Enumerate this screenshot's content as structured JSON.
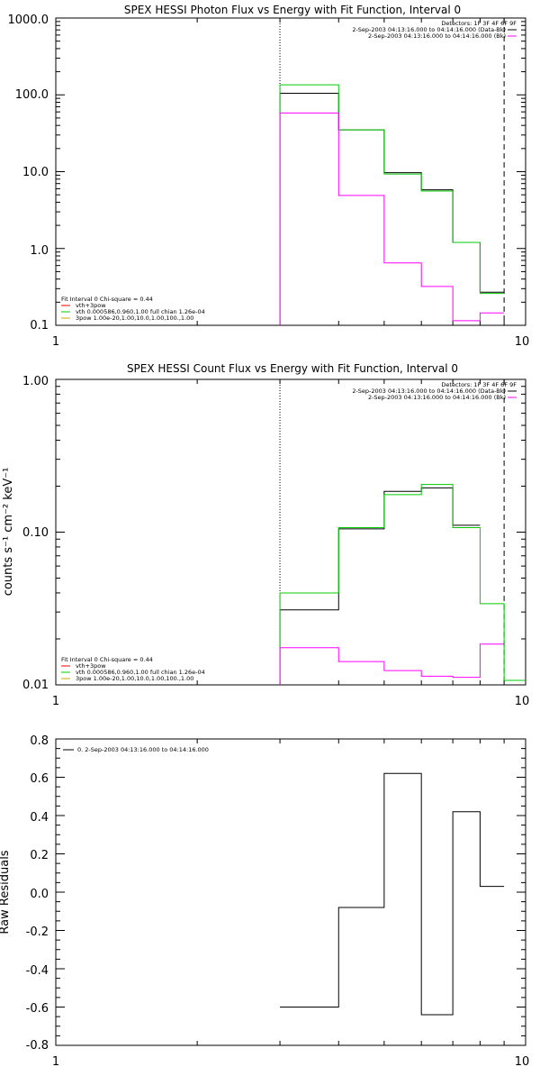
{
  "chart_data": [
    {
      "type": "line",
      "title": "SPEX HESSI Photon Flux vs Energy with Fit Function, Interval 0",
      "xscale": "log",
      "yscale": "log",
      "xlim": [
        1,
        10
      ],
      "ylim": [
        0.1,
        1000
      ],
      "xticks": [
        "1",
        "10"
      ],
      "yticks": [
        "0.1",
        "1.0",
        "10.0",
        "100.0",
        "1000.0"
      ],
      "ytick_values": [
        0.1,
        1,
        10,
        100,
        1000
      ],
      "energy_edges": [
        3,
        4,
        5,
        6,
        7,
        8,
        9
      ],
      "vlines": [
        {
          "x": 3,
          "style": "dotted"
        },
        {
          "x": 9,
          "style": "dashed"
        }
      ],
      "legend_top": {
        "placement": "top-right",
        "header": "Detectors: 1F 3F 4F 6F 9F",
        "entries": [
          {
            "label": "2-Sep-2003 04:13:16.000 to 04:14:16.000 (Data-Bk)",
            "color": "#000000"
          },
          {
            "label": "2-Sep-2003 04:13:16.000 to 04:14:16.000 (Bk)",
            "color": "#ff00ff"
          }
        ]
      },
      "legend_bottom": {
        "placement": "bottom-left",
        "header": "Fit Interval 0   Chi-square = 0.44",
        "entries": [
          {
            "label": "vth+3pow",
            "color": "#ff0000"
          },
          {
            "label": "vth 0.000586,0.960,1.00  full chian 1.26e-04",
            "color": "#00cc00"
          },
          {
            "label": "3pow 1.00e-20,1.00,10.0,1.00,100.,1.00",
            "color": "#ccaa00"
          }
        ]
      },
      "series": [
        {
          "color": "#000000",
          "values": [
            105,
            35,
            9.7,
            5.8,
            1.2,
            0.27
          ]
        },
        {
          "color": "#00cc00",
          "values": [
            135,
            35,
            9.3,
            5.6,
            1.2,
            0.26
          ]
        },
        {
          "color": "#ff00ff",
          "values": [
            58,
            4.9,
            0.65,
            0.32,
            0.115,
            0.145
          ]
        }
      ]
    },
    {
      "type": "line",
      "title": "SPEX HESSI Count Flux vs Energy with Fit Function, Interval 0",
      "ylabel": "counts s⁻¹ cm⁻² keV⁻¹",
      "xscale": "log",
      "yscale": "log",
      "xlim": [
        1,
        10
      ],
      "ylim": [
        0.01,
        1
      ],
      "xticks": [
        "1",
        "10"
      ],
      "yticks": [
        "0.01",
        "0.10",
        "1.00"
      ],
      "ytick_values": [
        0.01,
        0.1,
        1
      ],
      "energy_edges": [
        3,
        4,
        5,
        6,
        7,
        8,
        9,
        10
      ],
      "vlines": [
        {
          "x": 3,
          "style": "dotted"
        },
        {
          "x": 9,
          "style": "dashed"
        }
      ],
      "legend_top": {
        "placement": "top-right",
        "header": "Detectors: 1F 3F 4F 6F 9F",
        "entries": [
          {
            "label": "2-Sep-2003 04:13:16.000 to 04:14:16.000 (Data-Bk)",
            "color": "#000000"
          },
          {
            "label": "2-Sep-2003 04:13:16.000 to 04:14:16.000 (Bk)",
            "color": "#ff00ff"
          }
        ]
      },
      "legend_bottom": {
        "placement": "bottom-left",
        "header": "Fit Interval 0   Chi-square = 0.44",
        "entries": [
          {
            "label": "vth+3pow",
            "color": "#ff0000"
          },
          {
            "label": "vth 0.000586,0.960,1.00  full chian 1.26e-04",
            "color": "#00cc00"
          },
          {
            "label": "3pow 1.00e-20,1.00,10.0,1.00,100.,1.00",
            "color": "#ccaa00"
          }
        ]
      },
      "series": [
        {
          "color": "#000000",
          "values": [
            0.031,
            0.105,
            0.185,
            0.195,
            0.111,
            null,
            null
          ]
        },
        {
          "color": "#00cc00",
          "values": [
            0.04,
            0.107,
            0.176,
            0.205,
            0.107,
            0.034,
            0.0107
          ]
        },
        {
          "color": "#ff00ff",
          "values": [
            0.0175,
            0.0142,
            0.0124,
            0.0114,
            0.0112,
            0.0185,
            null
          ]
        }
      ]
    },
    {
      "type": "line",
      "title": "",
      "ylabel": "Raw Residuals",
      "xscale": "log",
      "yscale": "linear",
      "xlim": [
        1,
        10
      ],
      "ylim": [
        -0.8,
        0.8
      ],
      "xticks": [
        "1",
        "10"
      ],
      "yticks": [
        "-0.8",
        "-0.6",
        "-0.4",
        "-0.2",
        "0.0",
        "0.2",
        "0.4",
        "0.6",
        "0.8"
      ],
      "ytick_values": [
        -0.8,
        -0.6,
        -0.4,
        -0.2,
        0.0,
        0.2,
        0.4,
        0.6,
        0.8
      ],
      "energy_edges": [
        3,
        4,
        5,
        6,
        7,
        8,
        9
      ],
      "legend": {
        "placement": "top-left",
        "entries": [
          {
            "label": "0. 2-Sep-2003 04:13:16.000 to 04:14:16.000",
            "color": "#000000"
          }
        ]
      },
      "series": [
        {
          "color": "#000000",
          "values": [
            -0.6,
            -0.08,
            0.62,
            -0.64,
            0.42,
            0.03
          ]
        }
      ]
    }
  ]
}
